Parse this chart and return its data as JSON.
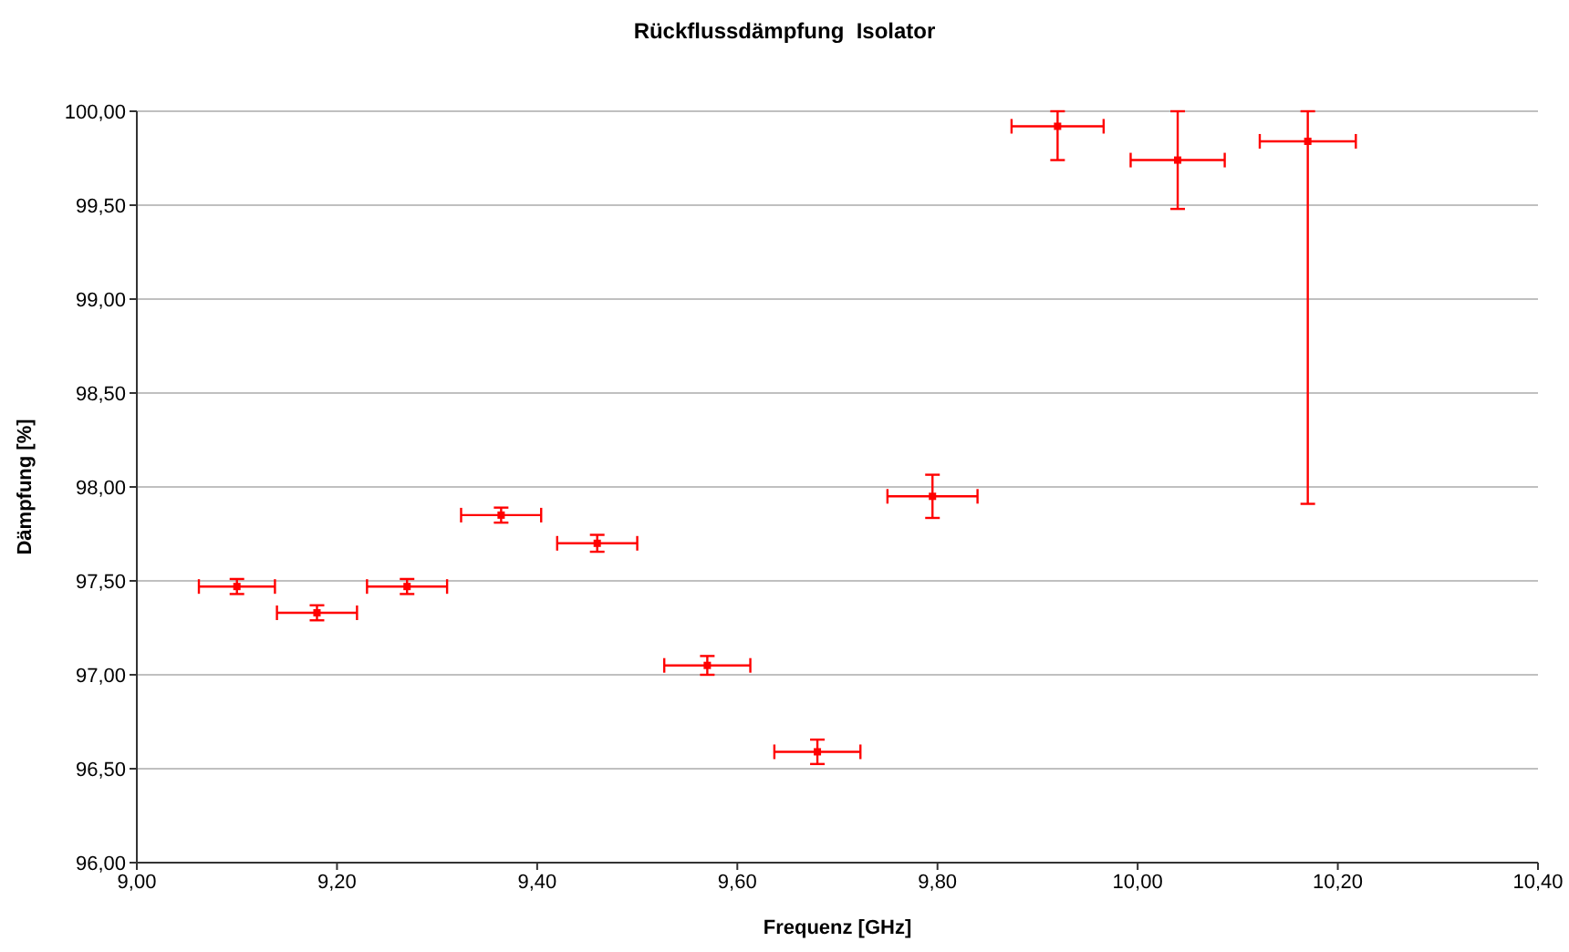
{
  "chart_data": {
    "type": "scatter",
    "title": "Rückflussdämpfung  Isolator",
    "xlabel": "Frequenz [GHz]",
    "ylabel": "Dämpfung [%]",
    "x": [
      9.1,
      9.18,
      9.27,
      9.364,
      9.46,
      9.57,
      9.68,
      9.795,
      9.92,
      10.04,
      10.17
    ],
    "series": [
      {
        "color": "#ff0000",
        "values": [
          97.47,
          97.33,
          97.47,
          97.85,
          97.7,
          97.05,
          96.59,
          97.95,
          99.92,
          99.74,
          99.84
        ],
        "errors": [
          0.04,
          0.04,
          0.04,
          0.04,
          0.045,
          0.05,
          0.065,
          0.115,
          [
            99.74,
            100.0
          ],
          0.26,
          [
            97.91,
            100.0
          ]
        ],
        "xerrors": [
          0.038,
          0.04,
          0.04,
          0.04,
          0.04,
          0.043,
          0.043,
          0.045,
          0.046,
          0.047,
          0.048
        ]
      }
    ],
    "xlim": [
      9.0,
      10.4
    ],
    "xticks": [
      {
        "value": 9.0,
        "label": "9,00"
      },
      {
        "value": 9.2,
        "label": "9,20"
      },
      {
        "value": 9.4,
        "label": "9,40"
      },
      {
        "value": 9.6,
        "label": "9,60"
      },
      {
        "value": 9.8,
        "label": "9,80"
      },
      {
        "value": 10.0,
        "label": "10,00"
      },
      {
        "value": 10.2,
        "label": "10,20"
      },
      {
        "value": 10.4,
        "label": "10,40"
      }
    ],
    "ylim": [
      96.0,
      100.0
    ],
    "yticks": [
      {
        "value": 96.0,
        "label": "96,00"
      },
      {
        "value": 96.5,
        "label": "96,50"
      },
      {
        "value": 97.0,
        "label": "97,00"
      },
      {
        "value": 97.5,
        "label": "97,50"
      },
      {
        "value": 98.0,
        "label": "98,00"
      },
      {
        "value": 98.5,
        "label": "98,50"
      },
      {
        "value": 99.0,
        "label": "99,00"
      },
      {
        "value": 99.5,
        "label": "99,50"
      },
      {
        "value": 100.0,
        "label": "100,00"
      }
    ],
    "grid": "y",
    "marker": "square",
    "legend": false
  }
}
